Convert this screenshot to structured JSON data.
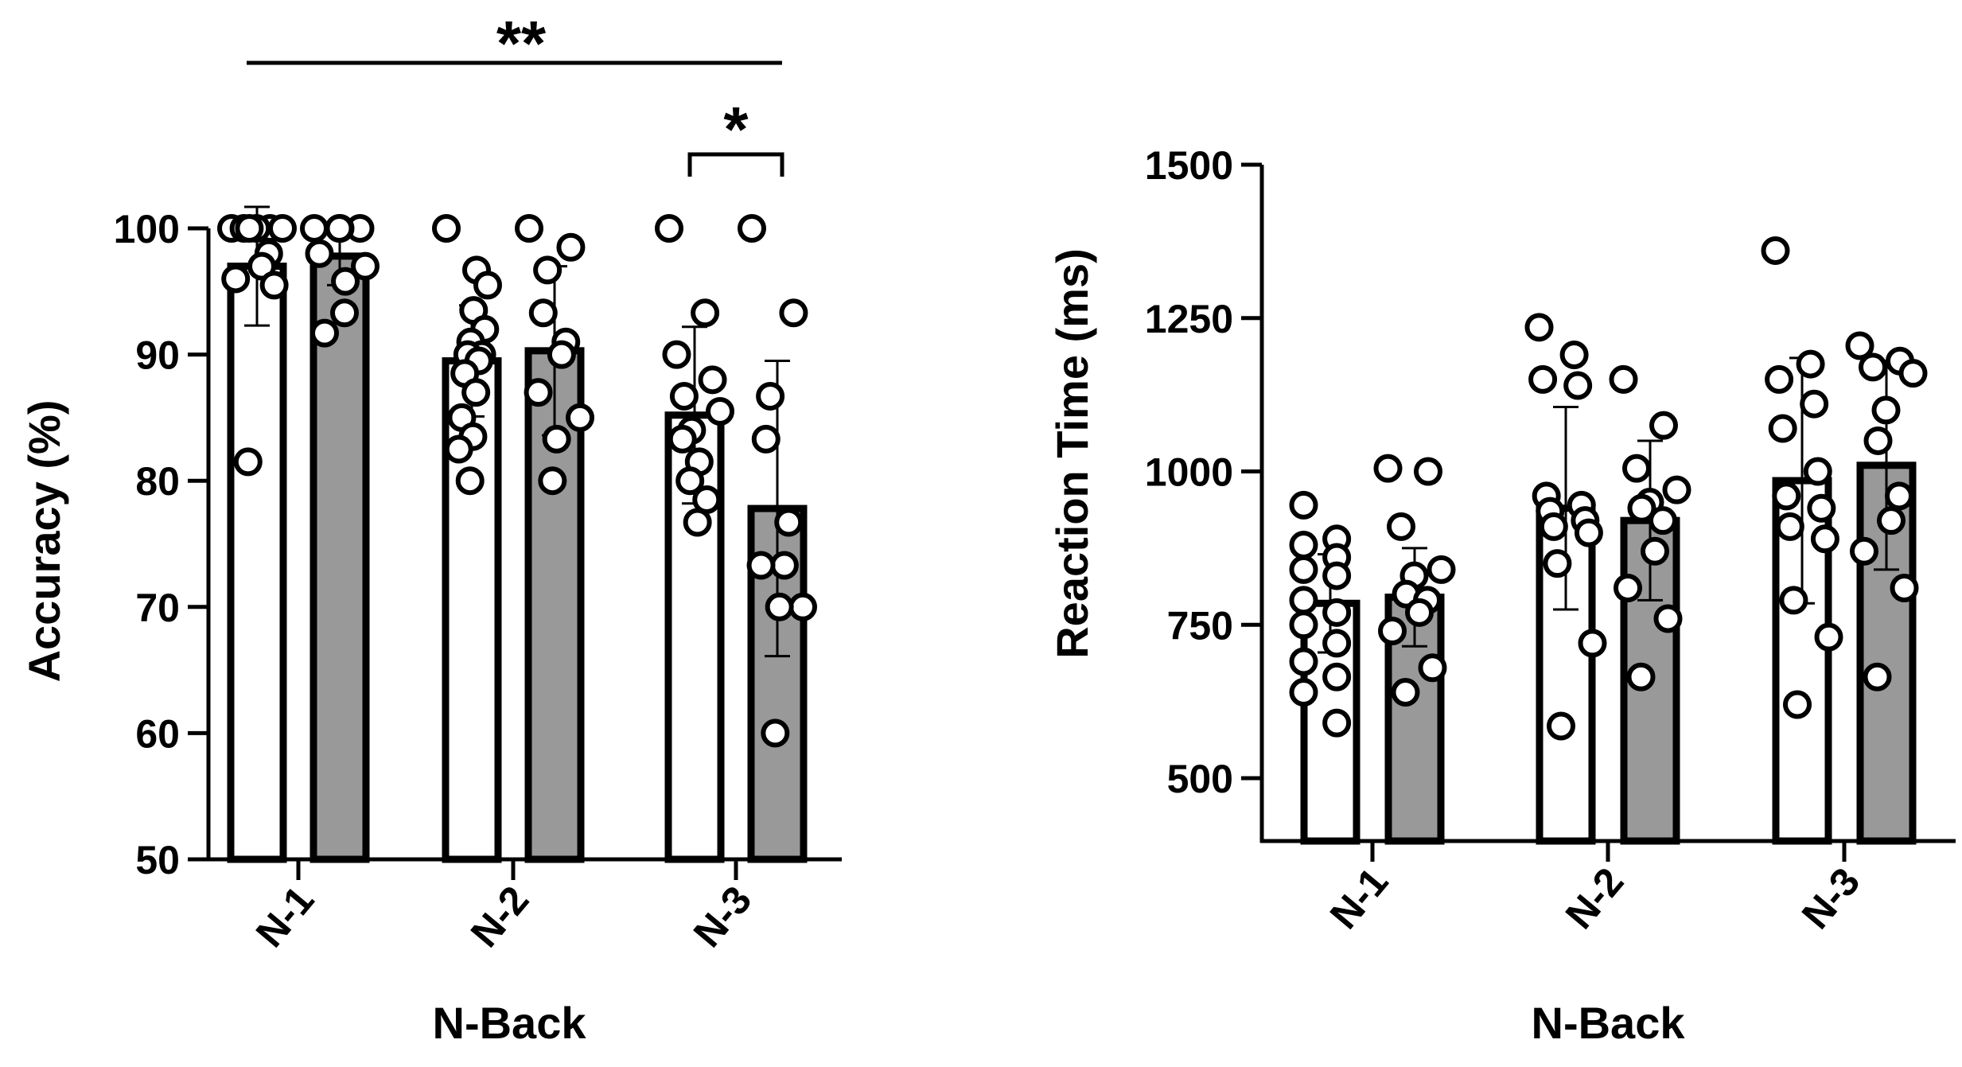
{
  "colors": {
    "bar_white": "#ffffff",
    "bar_gray": "#999999",
    "stroke": "#000000"
  },
  "chart_data": [
    {
      "type": "bar",
      "categories": [
        "N-1",
        "N-2",
        "N-3"
      ],
      "xlabel": "N-Back",
      "ylabel": "Accuracy (%)",
      "ylim": [
        50,
        100
      ],
      "yticks": [
        "50",
        "60",
        "70",
        "80",
        "90",
        "100"
      ],
      "grid": false,
      "series": [
        {
          "color": "#ffffff",
          "values": [
            97.0,
            89.5,
            85.2
          ],
          "err": [
            4.7,
            4.4,
            7.0
          ],
          "points": [
            [
              100,
              100,
              100,
              100,
              100,
              100,
              98,
              97,
              96,
              95.5,
              81.5
            ],
            [
              100,
              96.7,
              95.5,
              93.5,
              92,
              91,
              90,
              90,
              89.5,
              88.5,
              87,
              85,
              83.5,
              82.5,
              80
            ],
            [
              100,
              93.3,
              90,
              88,
              86.7,
              85.5,
              84,
              83.3,
              81.5,
              80,
              78.5,
              76.7
            ]
          ]
        },
        {
          "color": "#999999",
          "values": [
            97.8,
            90.3,
            77.8
          ],
          "err": [
            2.3,
            6.7,
            11.7
          ],
          "points": [
            [
              100,
              100,
              100,
              100,
              98,
              97,
              95.8,
              93.3,
              91.7
            ],
            [
              100,
              98.5,
              96.7,
              93.3,
              91,
              90,
              87,
              85,
              83.3,
              80
            ],
            [
              100,
              93.3,
              86.7,
              83.3,
              76.7,
              73.3,
              73.3,
              70,
              70,
              60
            ]
          ]
        }
      ],
      "annotations": [
        {
          "text": "**",
          "from_category": "N-1",
          "to_category": "N-3"
        },
        {
          "text": "*",
          "category": "N-3"
        }
      ]
    },
    {
      "type": "bar",
      "categories": [
        "N-1",
        "N-2",
        "N-3"
      ],
      "xlabel": "N-Back",
      "ylabel": "Reaction Time (ms)",
      "ylim": [
        400,
        1500
      ],
      "yticks": [
        "500",
        "750",
        "1000",
        "1250",
        "1500"
      ],
      "grid": false,
      "series": [
        {
          "color": "#ffffff",
          "values": [
            785,
            940,
            985
          ],
          "err": [
            80,
            165,
            200
          ],
          "points": [
            [
              945,
              890,
              880,
              860,
              840,
              830,
              790,
              770,
              750,
              720,
              690,
              665,
              640,
              590
            ],
            [
              1235,
              1190,
              1150,
              1140,
              960,
              945,
              935,
              920,
              910,
              900,
              850,
              720,
              585
            ],
            [
              1360,
              1175,
              1150,
              1110,
              1070,
              1000,
              960,
              940,
              910,
              890,
              790,
              730,
              620
            ]
          ]
        },
        {
          "color": "#999999",
          "values": [
            795,
            920,
            1010
          ],
          "err": [
            80,
            130,
            170
          ],
          "points": [
            [
              1005,
              1000,
              910,
              840,
              830,
              800,
              790,
              770,
              740,
              680,
              640
            ],
            [
              1150,
              1075,
              1005,
              970,
              950,
              940,
              920,
              870,
              810,
              760,
              665
            ],
            [
              1205,
              1180,
              1170,
              1160,
              1100,
              1050,
              960,
              920,
              870,
              810,
              665
            ]
          ]
        }
      ]
    }
  ]
}
